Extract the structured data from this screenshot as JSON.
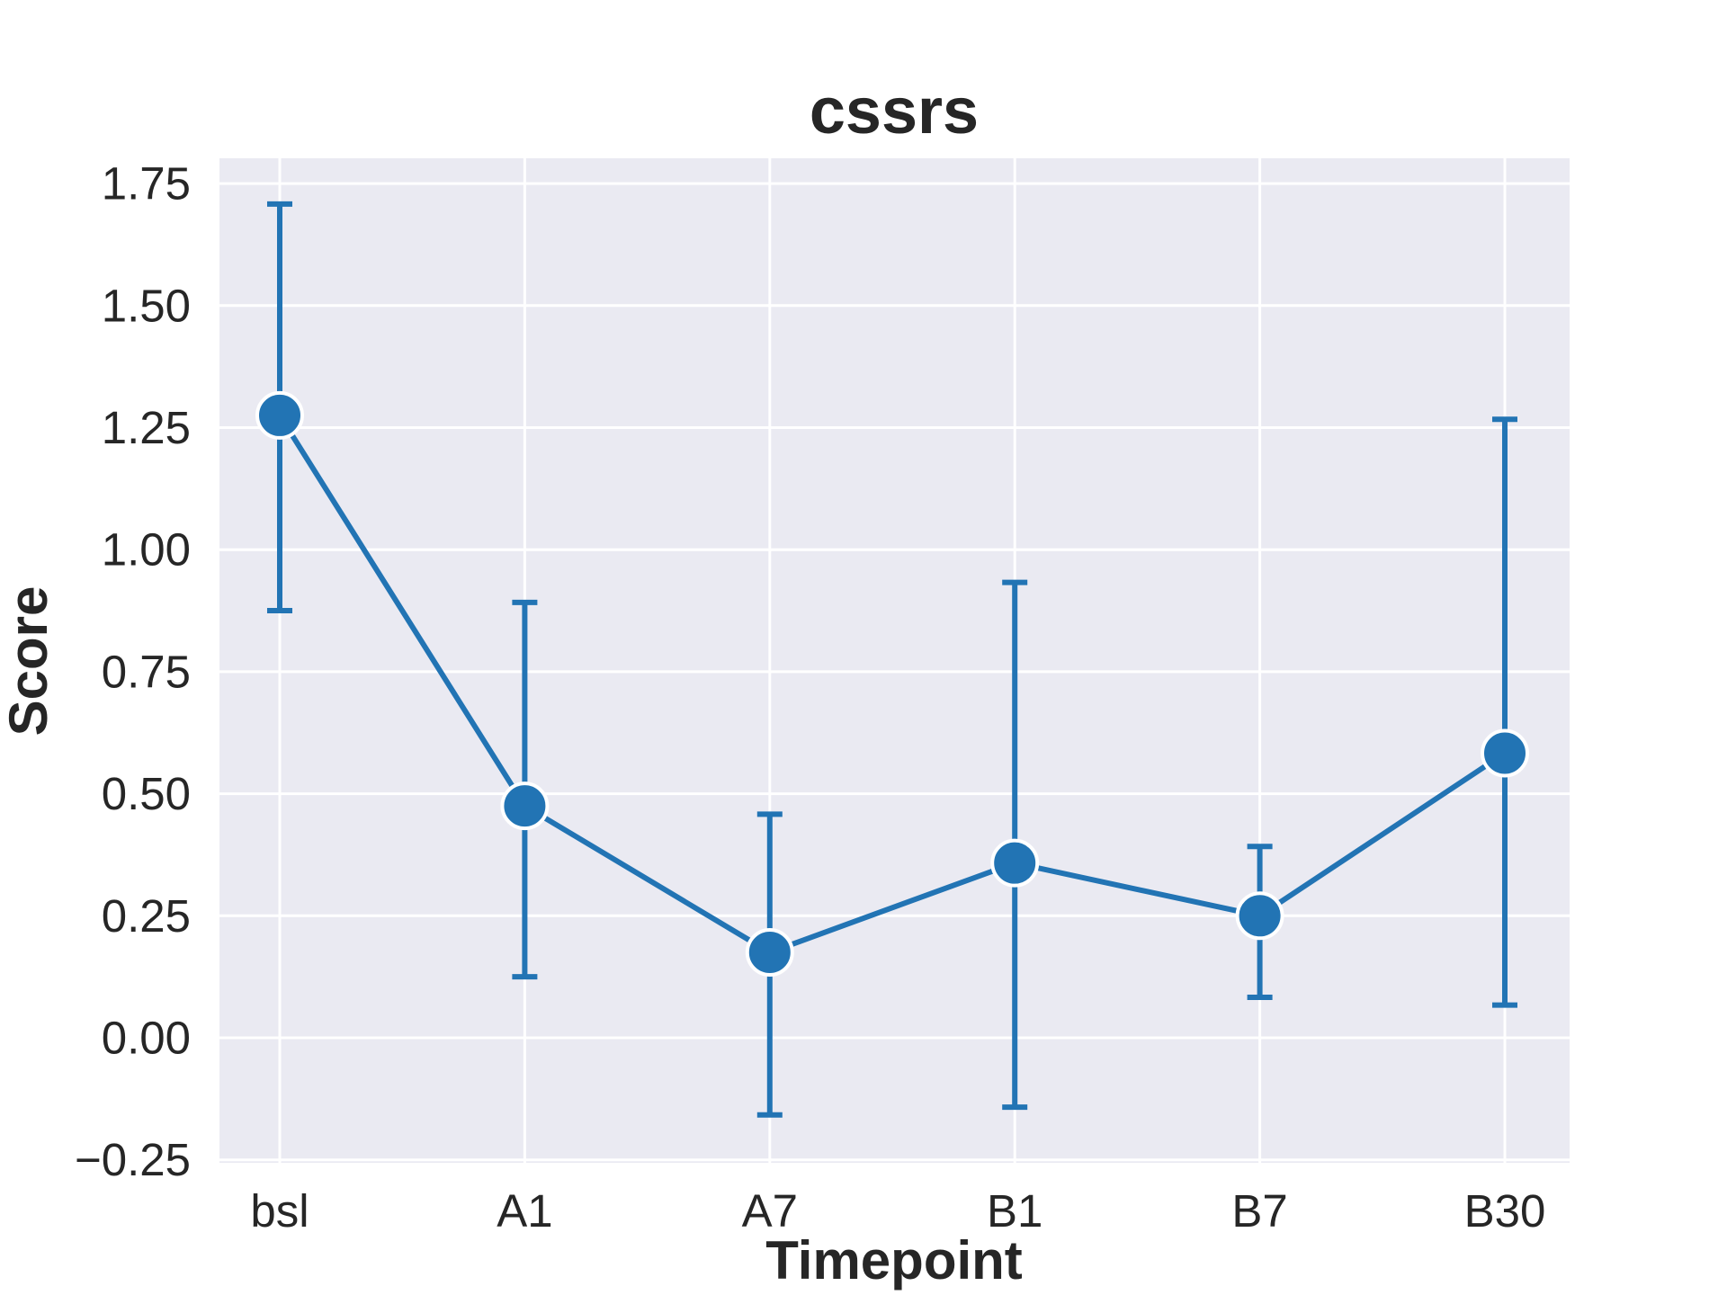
{
  "chart_data": {
    "type": "line",
    "title": "cssrs",
    "xlabel": "Timepoint",
    "ylabel": "Score",
    "categories": [
      "bsl",
      "A1",
      "A7",
      "B1",
      "B7",
      "B30"
    ],
    "series": [
      {
        "values": [
          1.275,
          0.475,
          0.175,
          0.358,
          0.25,
          0.583
        ],
        "error_low": [
          0.875,
          0.125,
          -0.158,
          -0.142,
          0.083,
          0.067
        ],
        "error_high": [
          1.708,
          0.892,
          0.458,
          0.933,
          0.392,
          1.267
        ]
      }
    ],
    "ylim": [
      -0.25,
      1.8
    ],
    "yticks": [
      -0.25,
      0.0,
      0.25,
      0.5,
      0.75,
      1.0,
      1.25,
      1.5,
      1.75
    ],
    "ytick_labels": [
      "−0.25",
      "0.00",
      "0.25",
      "0.50",
      "0.75",
      "1.00",
      "1.25",
      "1.50",
      "1.75"
    ],
    "grid": true,
    "colors": {
      "series": "#2274b4",
      "background": "#eaeaf2",
      "grid": "#ffffff",
      "marker_edge": "#ffffff"
    }
  }
}
